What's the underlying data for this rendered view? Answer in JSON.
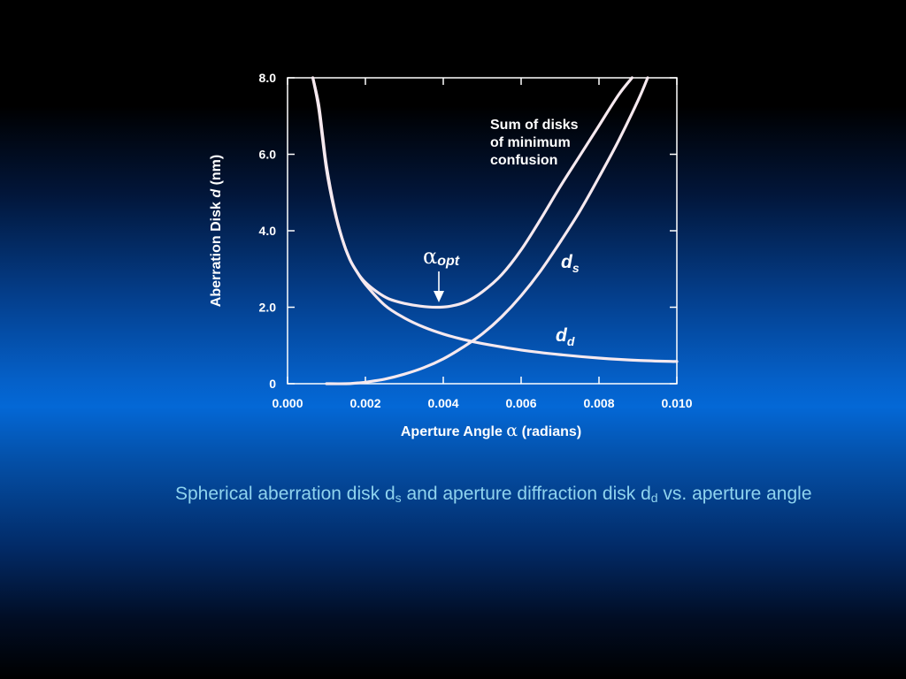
{
  "chart_data": {
    "type": "line",
    "title": "",
    "xlabel": {
      "prefix": "Aperture Angle ",
      "symbol": "α",
      "suffix": " (radians)"
    },
    "ylabel": {
      "prefix": "Aberration Disk ",
      "symbol": "d",
      "suffix": " (nm)"
    },
    "xlim": [
      0,
      0.01
    ],
    "ylim": [
      0,
      8
    ],
    "x_ticks": [
      {
        "value": 0,
        "label": "0.000"
      },
      {
        "value": 0.002,
        "label": "0.002"
      },
      {
        "value": 0.004,
        "label": "0.004"
      },
      {
        "value": 0.006,
        "label": "0.006"
      },
      {
        "value": 0.008,
        "label": "0.008"
      },
      {
        "value": 0.01,
        "label": "0.010"
      }
    ],
    "y_ticks": [
      {
        "value": 0,
        "label": "0"
      },
      {
        "value": 2,
        "label": "2.0"
      },
      {
        "value": 4,
        "label": "4.0"
      },
      {
        "value": 6,
        "label": "6.0"
      },
      {
        "value": 8,
        "label": "8.0"
      }
    ],
    "grid": false,
    "series": [
      {
        "name": "Sum of disks of minimum confusion",
        "name_lines": [
          "Sum of disks",
          "of minimum",
          "confusion"
        ],
        "x": [
          0.00065,
          0.0008,
          0.0009,
          0.001,
          0.0012,
          0.0014,
          0.0016,
          0.0018,
          0.002,
          0.0023,
          0.0026,
          0.003,
          0.0034,
          0.0038,
          0.0042,
          0.0046,
          0.005,
          0.0055,
          0.006,
          0.0065,
          0.007,
          0.0075,
          0.008,
          0.0085,
          0.00885
        ],
        "y": [
          8.0,
          7.3,
          6.5,
          5.7,
          4.6,
          3.8,
          3.25,
          2.9,
          2.65,
          2.4,
          2.22,
          2.1,
          2.03,
          2.0,
          2.03,
          2.15,
          2.4,
          2.85,
          3.5,
          4.3,
          5.15,
          5.95,
          6.75,
          7.55,
          8.0
        ]
      },
      {
        "name": "d",
        "name_sub": "s",
        "x": [
          0.001,
          0.0015,
          0.0018,
          0.002,
          0.0025,
          0.003,
          0.0035,
          0.004,
          0.0045,
          0.005,
          0.0055,
          0.006,
          0.0065,
          0.007,
          0.0075,
          0.008,
          0.0085,
          0.009,
          0.00925
        ],
        "y": [
          0.0,
          0.0,
          0.02,
          0.04,
          0.12,
          0.25,
          0.42,
          0.65,
          0.95,
          1.3,
          1.75,
          2.3,
          2.95,
          3.7,
          4.5,
          5.4,
          6.35,
          7.4,
          8.0
        ]
      },
      {
        "name": "d",
        "name_sub": "d",
        "x": [
          0.00065,
          0.0008,
          0.001,
          0.0012,
          0.0014,
          0.0016,
          0.0018,
          0.002,
          0.0025,
          0.003,
          0.0035,
          0.004,
          0.0045,
          0.005,
          0.006,
          0.007,
          0.008,
          0.009,
          0.01
        ],
        "y": [
          8.0,
          7.2,
          5.6,
          4.55,
          3.8,
          3.25,
          2.9,
          2.6,
          2.05,
          1.72,
          1.48,
          1.3,
          1.16,
          1.05,
          0.88,
          0.76,
          0.67,
          0.61,
          0.58
        ]
      }
    ],
    "annotations": [
      {
        "symbol": "α",
        "sub": "opt",
        "x": 0.0039,
        "y": 2.0,
        "arrow": true
      }
    ]
  },
  "caption": {
    "part1": "Spherical aberration disk d",
    "sub1": "s",
    "part2": " and aperture diffraction disk d",
    "sub2": "d",
    "part3": " vs. aperture angle"
  }
}
